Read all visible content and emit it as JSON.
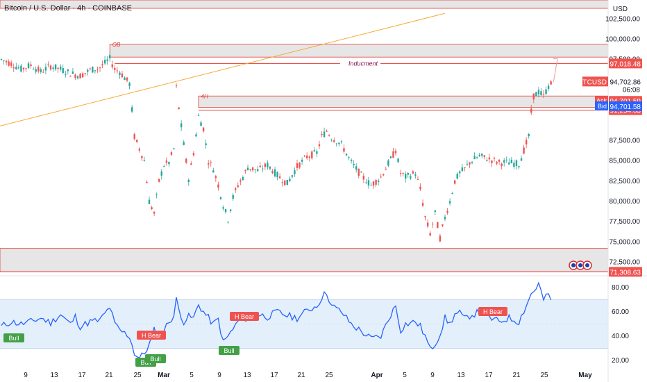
{
  "header": {
    "title": "Bitcoin / U.S. Dollar · 4h · COINBASE",
    "currency": "USD"
  },
  "colors": {
    "bull": "#26a69a",
    "bear": "#ef5350",
    "zone": "#e6e6e6",
    "zone_border": "#e53935",
    "trend": "#f7a935",
    "rsi": "#2962ff",
    "rsi_band": "#e3f0fb",
    "label_blue": "#2962ff"
  },
  "price_axis": {
    "ticks": [
      "102,500.00",
      "100,000.00",
      "97,500.00",
      "87,500.00",
      "85,000.00",
      "82,500.00",
      "80,000.00",
      "77,500.00",
      "75,000.00",
      "72,500.00"
    ],
    "symbol": "BTCUSD",
    "last_price": "94,702.86",
    "countdown": "06:08",
    "ask_label": "Ask",
    "ask_price": "94,701.59",
    "bid_label": "Bid",
    "bid_price": "94,701.58",
    "level_labels": [
      "97,018.48",
      "91,254.63",
      "71,308.63"
    ]
  },
  "annotations": {
    "ob": "OB",
    "h4": "4H",
    "inducment": "Inducment"
  },
  "rsi": {
    "ticks": [
      "80.00",
      "60.00",
      "40.00",
      "20.00"
    ],
    "labels": [
      "Bull",
      "H Bear",
      "Bull",
      "Bull",
      "H Bear",
      "Bull",
      "H Bear"
    ]
  },
  "time_axis": [
    "9",
    "13",
    "17",
    "21",
    "25",
    "Mar",
    "5",
    "9",
    "13",
    "17",
    "21",
    "25",
    "Apr",
    "5",
    "9",
    "13",
    "17",
    "21",
    "25",
    "May"
  ],
  "chart_data": [
    {
      "type": "candlestick",
      "title": "Bitcoin / U.S. Dollar · 4h · COINBASE",
      "x_ticks": [
        "9",
        "13",
        "17",
        "21",
        "25",
        "Mar",
        "5",
        "9",
        "13",
        "17",
        "21",
        "25",
        "Apr",
        "5",
        "9",
        "13",
        "17",
        "21",
        "25",
        "May"
      ],
      "y_ticks": [
        102500,
        100000,
        97500,
        87500,
        85000,
        82500,
        80000,
        77500,
        75000,
        72500
      ],
      "ylim": [
        71000,
        104500
      ],
      "approx_close_path": [
        [
          0,
          97500
        ],
        [
          4,
          97000
        ],
        [
          8,
          96300
        ],
        [
          12,
          96800
        ],
        [
          16,
          96000
        ],
        [
          20,
          96700
        ],
        [
          24,
          96300
        ],
        [
          28,
          95800
        ],
        [
          32,
          95500
        ],
        [
          36,
          96200
        ],
        [
          40,
          96500
        ],
        [
          44,
          97600
        ],
        [
          46,
          96300
        ],
        [
          48,
          96000
        ],
        [
          52,
          94500
        ],
        [
          54,
          88000
        ],
        [
          58,
          85000
        ],
        [
          60,
          80000
        ],
        [
          62,
          78500
        ],
        [
          64,
          82500
        ],
        [
          66,
          84500
        ],
        [
          68,
          84800
        ],
        [
          70,
          86500
        ],
        [
          71,
          94000
        ],
        [
          72,
          91500
        ],
        [
          74,
          87000
        ],
        [
          76,
          82800
        ],
        [
          78,
          86000
        ],
        [
          80,
          90500
        ],
        [
          82,
          89000
        ],
        [
          84,
          85000
        ],
        [
          86,
          84000
        ],
        [
          88,
          82000
        ],
        [
          90,
          79500
        ],
        [
          92,
          77800
        ],
        [
          94,
          80500
        ],
        [
          96,
          82000
        ],
        [
          98,
          83000
        ],
        [
          100,
          84200
        ],
        [
          104,
          83800
        ],
        [
          108,
          84500
        ],
        [
          112,
          83200
        ],
        [
          116,
          82200
        ],
        [
          120,
          84300
        ],
        [
          124,
          85500
        ],
        [
          128,
          86000
        ],
        [
          130,
          88000
        ],
        [
          132,
          88700
        ],
        [
          134,
          87900
        ],
        [
          138,
          87000
        ],
        [
          142,
          84800
        ],
        [
          146,
          83200
        ],
        [
          150,
          82000
        ],
        [
          154,
          83000
        ],
        [
          158,
          85200
        ],
        [
          160,
          86300
        ],
        [
          162,
          83500
        ],
        [
          164,
          83000
        ],
        [
          168,
          83500
        ],
        [
          170,
          81500
        ],
        [
          172,
          78000
        ],
        [
          174,
          76000
        ],
        [
          176,
          78500
        ],
        [
          178,
          75500
        ],
        [
          180,
          78000
        ],
        [
          182,
          80000
        ],
        [
          184,
          82500
        ],
        [
          186,
          83500
        ],
        [
          188,
          84000
        ],
        [
          190,
          84800
        ],
        [
          194,
          85600
        ],
        [
          198,
          85200
        ],
        [
          202,
          84800
        ],
        [
          206,
          84800
        ],
        [
          210,
          84600
        ],
        [
          212,
          86300
        ],
        [
          214,
          88000
        ],
        [
          215,
          91000
        ],
        [
          216,
          93000
        ],
        [
          218,
          93500
        ],
        [
          220,
          93000
        ],
        [
          222,
          94200
        ],
        [
          224,
          94700
        ]
      ],
      "levels": [
        {
          "label": "97,018.48",
          "value": 97018.48
        },
        {
          "label": "91,254.63",
          "value": 91254.63
        },
        {
          "label": "71,308.63",
          "value": 71308.63
        }
      ],
      "zones": [
        {
          "label": "OB",
          "from": 97800,
          "to": 99400
        },
        {
          "label": "4H",
          "from": 91600,
          "to": 93000
        },
        {
          "label": "",
          "from": 71300,
          "to": 74200
        }
      ],
      "last_price": 94702.86,
      "ask": 94701.59,
      "bid": 94701.58
    },
    {
      "type": "line",
      "title": "",
      "y_ticks": [
        80,
        60,
        40,
        20
      ],
      "ylim": [
        15,
        88
      ],
      "band": [
        30,
        70
      ],
      "midline": 50,
      "approx_values": [
        [
          0,
          48
        ],
        [
          4,
          52
        ],
        [
          8,
          50
        ],
        [
          12,
          52
        ],
        [
          16,
          55
        ],
        [
          20,
          51
        ],
        [
          24,
          58
        ],
        [
          28,
          50
        ],
        [
          30,
          56
        ],
        [
          32,
          48
        ],
        [
          36,
          52
        ],
        [
          40,
          53
        ],
        [
          44,
          64
        ],
        [
          46,
          50
        ],
        [
          48,
          45
        ],
        [
          52,
          40
        ],
        [
          54,
          26
        ],
        [
          56,
          22
        ],
        [
          58,
          26
        ],
        [
          60,
          33
        ],
        [
          62,
          45
        ],
        [
          64,
          38
        ],
        [
          66,
          45
        ],
        [
          68,
          52
        ],
        [
          70,
          57
        ],
        [
          71,
          70
        ],
        [
          72,
          62
        ],
        [
          74,
          52
        ],
        [
          76,
          56
        ],
        [
          78,
          55
        ],
        [
          80,
          66
        ],
        [
          82,
          60
        ],
        [
          84,
          55
        ],
        [
          86,
          50
        ],
        [
          88,
          54
        ],
        [
          90,
          35
        ],
        [
          92,
          40
        ],
        [
          94,
          46
        ],
        [
          96,
          52
        ],
        [
          98,
          56
        ],
        [
          100,
          54
        ],
        [
          104,
          58
        ],
        [
          108,
          56
        ],
        [
          112,
          60
        ],
        [
          116,
          57
        ],
        [
          120,
          55
        ],
        [
          124,
          61
        ],
        [
          128,
          65
        ],
        [
          130,
          72
        ],
        [
          132,
          76
        ],
        [
          134,
          65
        ],
        [
          138,
          60
        ],
        [
          142,
          50
        ],
        [
          146,
          44
        ],
        [
          150,
          38
        ],
        [
          154,
          40
        ],
        [
          158,
          58
        ],
        [
          160,
          65
        ],
        [
          162,
          45
        ],
        [
          164,
          50
        ],
        [
          168,
          52
        ],
        [
          170,
          48
        ],
        [
          172,
          40
        ],
        [
          174,
          29
        ],
        [
          176,
          34
        ],
        [
          178,
          42
        ],
        [
          180,
          55
        ],
        [
          182,
          50
        ],
        [
          184,
          58
        ],
        [
          186,
          59
        ],
        [
          188,
          54
        ],
        [
          190,
          57
        ],
        [
          194,
          60
        ],
        [
          198,
          55
        ],
        [
          202,
          52
        ],
        [
          206,
          55
        ],
        [
          210,
          52
        ],
        [
          212,
          61
        ],
        [
          214,
          70
        ],
        [
          215,
          75
        ],
        [
          216,
          77
        ],
        [
          218,
          83
        ],
        [
          220,
          70
        ],
        [
          222,
          74
        ],
        [
          224,
          67
        ]
      ]
    }
  ]
}
